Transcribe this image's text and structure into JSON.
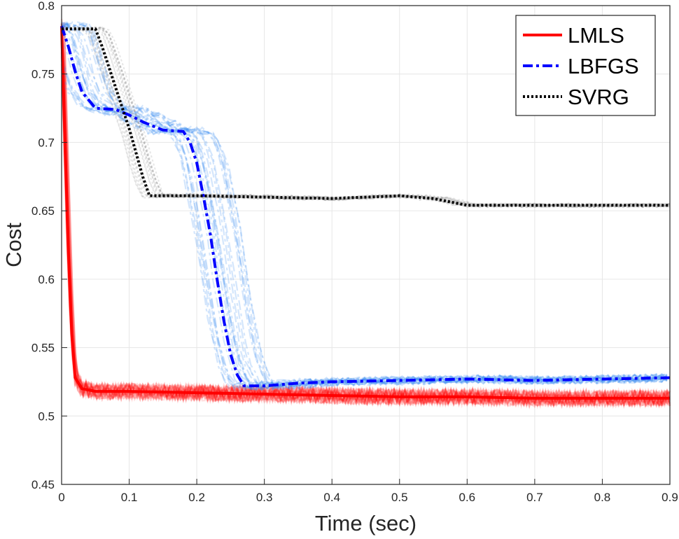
{
  "chart_data": {
    "type": "line",
    "title": "",
    "xlabel": "Time (sec)",
    "ylabel": "Cost",
    "xlim": [
      0,
      0.9
    ],
    "ylim": [
      0.45,
      0.8
    ],
    "x_ticks": [
      "0",
      "0.1",
      "0.2",
      "0.3",
      "0.4",
      "0.5",
      "0.6",
      "0.7",
      "0.8",
      "0.9"
    ],
    "y_ticks": [
      "0.45",
      "0.5",
      "0.55",
      "0.6",
      "0.65",
      "0.7",
      "0.75",
      "0.8"
    ],
    "grid": true,
    "legend_position": "top-right",
    "series": [
      {
        "name": "LMLS",
        "color": "#ff0000",
        "style": "solid",
        "x": [
          0,
          0.005,
          0.01,
          0.015,
          0.02,
          0.03,
          0.05,
          0.1,
          0.2,
          0.3,
          0.4,
          0.5,
          0.6,
          0.7,
          0.8,
          0.9
        ],
        "y": [
          0.785,
          0.7,
          0.62,
          0.56,
          0.528,
          0.52,
          0.518,
          0.518,
          0.517,
          0.516,
          0.515,
          0.514,
          0.514,
          0.513,
          0.513,
          0.513
        ]
      },
      {
        "name": "LBFGS",
        "color": "#0000ff",
        "style": "dashdot",
        "x": [
          0,
          0.01,
          0.02,
          0.03,
          0.05,
          0.08,
          0.1,
          0.12,
          0.15,
          0.18,
          0.19,
          0.2,
          0.21,
          0.22,
          0.23,
          0.24,
          0.25,
          0.26,
          0.27,
          0.3,
          0.35,
          0.4,
          0.5,
          0.6,
          0.7,
          0.8,
          0.9
        ],
        "y": [
          0.785,
          0.77,
          0.752,
          0.737,
          0.725,
          0.724,
          0.72,
          0.715,
          0.709,
          0.708,
          0.7,
          0.685,
          0.66,
          0.633,
          0.6,
          0.57,
          0.545,
          0.53,
          0.522,
          0.522,
          0.524,
          0.525,
          0.526,
          0.527,
          0.526,
          0.527,
          0.528
        ]
      },
      {
        "name": "SVRG",
        "color": "#000000",
        "style": "dotted",
        "x": [
          0,
          0.05,
          0.06,
          0.08,
          0.1,
          0.12,
          0.13,
          0.2,
          0.3,
          0.4,
          0.45,
          0.5,
          0.55,
          0.6,
          0.7,
          0.8,
          0.9
        ],
        "y": [
          0.783,
          0.783,
          0.77,
          0.74,
          0.71,
          0.675,
          0.661,
          0.661,
          0.66,
          0.659,
          0.66,
          0.661,
          0.659,
          0.654,
          0.654,
          0.654,
          0.654
        ]
      }
    ]
  }
}
